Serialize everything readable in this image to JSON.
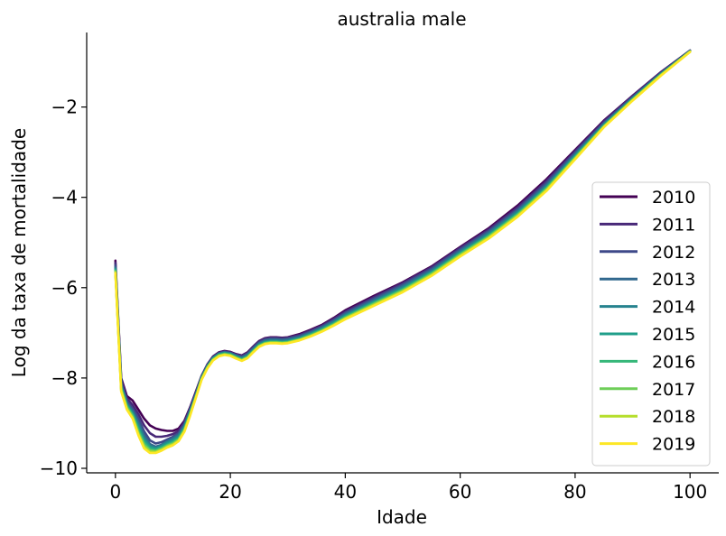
{
  "chart_data": {
    "type": "line",
    "title": "australia male",
    "xlabel": "Idade",
    "ylabel": "Log da taxa de mortalidade",
    "xlim": [
      -5,
      105
    ],
    "ylim": [
      -10.1,
      -0.35
    ],
    "xticks": [
      0,
      20,
      40,
      60,
      80,
      100
    ],
    "xtick_labels": [
      "0",
      "20",
      "40",
      "60",
      "80",
      "100"
    ],
    "yticks": [
      -10,
      -8,
      -6,
      -4,
      -2
    ],
    "ytick_labels": [
      "−10",
      "−8",
      "−6",
      "−4",
      "−2"
    ],
    "grid": false,
    "legend_position": "lower-right",
    "x": [
      0,
      1,
      2,
      3,
      4,
      5,
      6,
      7,
      8,
      9,
      10,
      11,
      12,
      13,
      14,
      15,
      16,
      17,
      18,
      19,
      20,
      21,
      22,
      23,
      24,
      25,
      26,
      27,
      28,
      29,
      30,
      32,
      34,
      36,
      38,
      40,
      45,
      50,
      55,
      60,
      65,
      70,
      75,
      80,
      85,
      90,
      95,
      100
    ],
    "series": [
      {
        "name": "2010",
        "color": "#440154",
        "values": [
          -5.4,
          -8.0,
          -8.4,
          -8.5,
          -8.7,
          -8.9,
          -9.05,
          -9.12,
          -9.15,
          -9.17,
          -9.17,
          -9.12,
          -8.95,
          -8.65,
          -8.3,
          -7.95,
          -7.7,
          -7.52,
          -7.43,
          -7.4,
          -7.42,
          -7.47,
          -7.5,
          -7.43,
          -7.3,
          -7.18,
          -7.12,
          -7.1,
          -7.1,
          -7.11,
          -7.1,
          -7.03,
          -6.93,
          -6.82,
          -6.67,
          -6.5,
          -6.18,
          -5.88,
          -5.53,
          -5.1,
          -4.68,
          -4.18,
          -3.6,
          -2.95,
          -2.3,
          -1.75,
          -1.22,
          -0.75
        ]
      },
      {
        "name": "2011",
        "color": "#482878",
        "values": [
          -5.45,
          -8.05,
          -8.45,
          -8.6,
          -8.8,
          -9.05,
          -9.22,
          -9.3,
          -9.3,
          -9.28,
          -9.24,
          -9.17,
          -8.98,
          -8.67,
          -8.32,
          -7.96,
          -7.71,
          -7.53,
          -7.44,
          -7.41,
          -7.43,
          -7.48,
          -7.51,
          -7.44,
          -7.31,
          -7.19,
          -7.13,
          -7.11,
          -7.11,
          -7.12,
          -7.11,
          -7.05,
          -6.95,
          -6.84,
          -6.69,
          -6.53,
          -6.21,
          -5.9,
          -5.55,
          -5.12,
          -4.71,
          -4.22,
          -3.64,
          -2.98,
          -2.32,
          -1.76,
          -1.23,
          -0.75
        ]
      },
      {
        "name": "2012",
        "color": "#3e4989",
        "values": [
          -5.5,
          -8.1,
          -8.5,
          -8.68,
          -8.9,
          -9.18,
          -9.38,
          -9.45,
          -9.42,
          -9.36,
          -9.3,
          -9.22,
          -9.02,
          -8.7,
          -8.34,
          -7.97,
          -7.72,
          -7.54,
          -7.45,
          -7.42,
          -7.44,
          -7.49,
          -7.53,
          -7.46,
          -7.33,
          -7.21,
          -7.15,
          -7.13,
          -7.13,
          -7.14,
          -7.13,
          -7.07,
          -6.97,
          -6.86,
          -6.72,
          -6.56,
          -6.24,
          -5.93,
          -5.58,
          -5.15,
          -4.74,
          -4.26,
          -3.68,
          -3.01,
          -2.35,
          -1.78,
          -1.24,
          -0.76
        ]
      },
      {
        "name": "2013",
        "color": "#31688e",
        "values": [
          -5.55,
          -8.15,
          -8.55,
          -8.72,
          -8.98,
          -9.27,
          -9.46,
          -9.52,
          -9.48,
          -9.4,
          -9.33,
          -9.25,
          -9.05,
          -8.72,
          -8.36,
          -7.98,
          -7.73,
          -7.55,
          -7.46,
          -7.43,
          -7.45,
          -7.51,
          -7.55,
          -7.48,
          -7.35,
          -7.23,
          -7.17,
          -7.15,
          -7.15,
          -7.16,
          -7.15,
          -7.09,
          -6.99,
          -6.88,
          -6.74,
          -6.58,
          -6.27,
          -5.96,
          -5.61,
          -5.18,
          -4.77,
          -4.29,
          -3.72,
          -3.04,
          -2.37,
          -1.8,
          -1.25,
          -0.76
        ]
      },
      {
        "name": "2014",
        "color": "#26828e",
        "values": [
          -5.58,
          -8.18,
          -8.58,
          -8.76,
          -9.04,
          -9.33,
          -9.5,
          -9.55,
          -9.5,
          -9.42,
          -9.36,
          -9.28,
          -9.08,
          -8.75,
          -8.38,
          -7.99,
          -7.74,
          -7.56,
          -7.47,
          -7.44,
          -7.46,
          -7.52,
          -7.56,
          -7.5,
          -7.37,
          -7.25,
          -7.19,
          -7.17,
          -7.17,
          -7.18,
          -7.17,
          -7.11,
          -7.01,
          -6.9,
          -6.76,
          -6.61,
          -6.3,
          -5.99,
          -5.64,
          -5.21,
          -4.8,
          -4.32,
          -3.75,
          -3.07,
          -2.39,
          -1.81,
          -1.26,
          -0.76
        ]
      },
      {
        "name": "2015",
        "color": "#1f9e89",
        "values": [
          -5.6,
          -8.2,
          -8.6,
          -8.8,
          -9.1,
          -9.38,
          -9.53,
          -9.57,
          -9.52,
          -9.45,
          -9.39,
          -9.31,
          -9.11,
          -8.77,
          -8.4,
          -8.0,
          -7.75,
          -7.57,
          -7.48,
          -7.45,
          -7.47,
          -7.53,
          -7.58,
          -7.52,
          -7.39,
          -7.27,
          -7.21,
          -7.19,
          -7.19,
          -7.2,
          -7.19,
          -7.13,
          -7.03,
          -6.92,
          -6.79,
          -6.63,
          -6.32,
          -6.02,
          -5.66,
          -5.23,
          -4.83,
          -4.35,
          -3.78,
          -3.09,
          -2.41,
          -1.82,
          -1.27,
          -0.77
        ]
      },
      {
        "name": "2016",
        "color": "#35b779",
        "values": [
          -5.62,
          -8.22,
          -8.62,
          -8.82,
          -9.15,
          -9.43,
          -9.57,
          -9.6,
          -9.55,
          -9.48,
          -9.42,
          -9.34,
          -9.13,
          -8.79,
          -8.41,
          -8.01,
          -7.76,
          -7.58,
          -7.49,
          -7.46,
          -7.48,
          -7.54,
          -7.59,
          -7.53,
          -7.4,
          -7.28,
          -7.22,
          -7.2,
          -7.2,
          -7.21,
          -7.2,
          -7.14,
          -7.04,
          -6.93,
          -6.8,
          -6.65,
          -6.34,
          -6.04,
          -5.68,
          -5.25,
          -4.85,
          -4.37,
          -3.8,
          -3.11,
          -2.42,
          -1.83,
          -1.28,
          -0.77
        ]
      },
      {
        "name": "2017",
        "color": "#6ece58",
        "values": [
          -5.64,
          -8.25,
          -8.65,
          -8.85,
          -9.2,
          -9.48,
          -9.6,
          -9.62,
          -9.57,
          -9.5,
          -9.45,
          -9.36,
          -9.15,
          -8.8,
          -8.42,
          -8.02,
          -7.77,
          -7.59,
          -7.5,
          -7.47,
          -7.49,
          -7.55,
          -7.6,
          -7.54,
          -7.41,
          -7.29,
          -7.23,
          -7.21,
          -7.21,
          -7.22,
          -7.21,
          -7.15,
          -7.06,
          -6.95,
          -6.82,
          -6.67,
          -6.36,
          -6.06,
          -5.7,
          -5.27,
          -4.87,
          -4.39,
          -3.82,
          -3.13,
          -2.43,
          -1.84,
          -1.28,
          -0.77
        ]
      },
      {
        "name": "2018",
        "color": "#b5de2b",
        "values": [
          -5.66,
          -8.28,
          -8.68,
          -8.88,
          -9.24,
          -9.52,
          -9.63,
          -9.64,
          -9.59,
          -9.52,
          -9.47,
          -9.38,
          -9.17,
          -8.82,
          -8.43,
          -8.03,
          -7.78,
          -7.6,
          -7.51,
          -7.48,
          -7.5,
          -7.56,
          -7.61,
          -7.55,
          -7.42,
          -7.3,
          -7.24,
          -7.22,
          -7.22,
          -7.23,
          -7.22,
          -7.16,
          -7.07,
          -6.96,
          -6.83,
          -6.68,
          -6.38,
          -6.08,
          -5.72,
          -5.29,
          -4.89,
          -4.41,
          -3.84,
          -3.14,
          -2.44,
          -1.85,
          -1.29,
          -0.78
        ]
      },
      {
        "name": "2019",
        "color": "#fde725",
        "values": [
          -5.68,
          -8.3,
          -8.7,
          -8.9,
          -9.27,
          -9.56,
          -9.66,
          -9.66,
          -9.61,
          -9.54,
          -9.49,
          -9.4,
          -9.19,
          -8.84,
          -8.44,
          -8.04,
          -7.79,
          -7.61,
          -7.52,
          -7.49,
          -7.51,
          -7.57,
          -7.62,
          -7.56,
          -7.43,
          -7.31,
          -7.25,
          -7.23,
          -7.23,
          -7.24,
          -7.23,
          -7.17,
          -7.08,
          -6.97,
          -6.84,
          -6.7,
          -6.4,
          -6.1,
          -5.74,
          -5.31,
          -4.91,
          -4.43,
          -3.86,
          -3.16,
          -2.45,
          -1.86,
          -1.3,
          -0.78
        ]
      }
    ]
  }
}
